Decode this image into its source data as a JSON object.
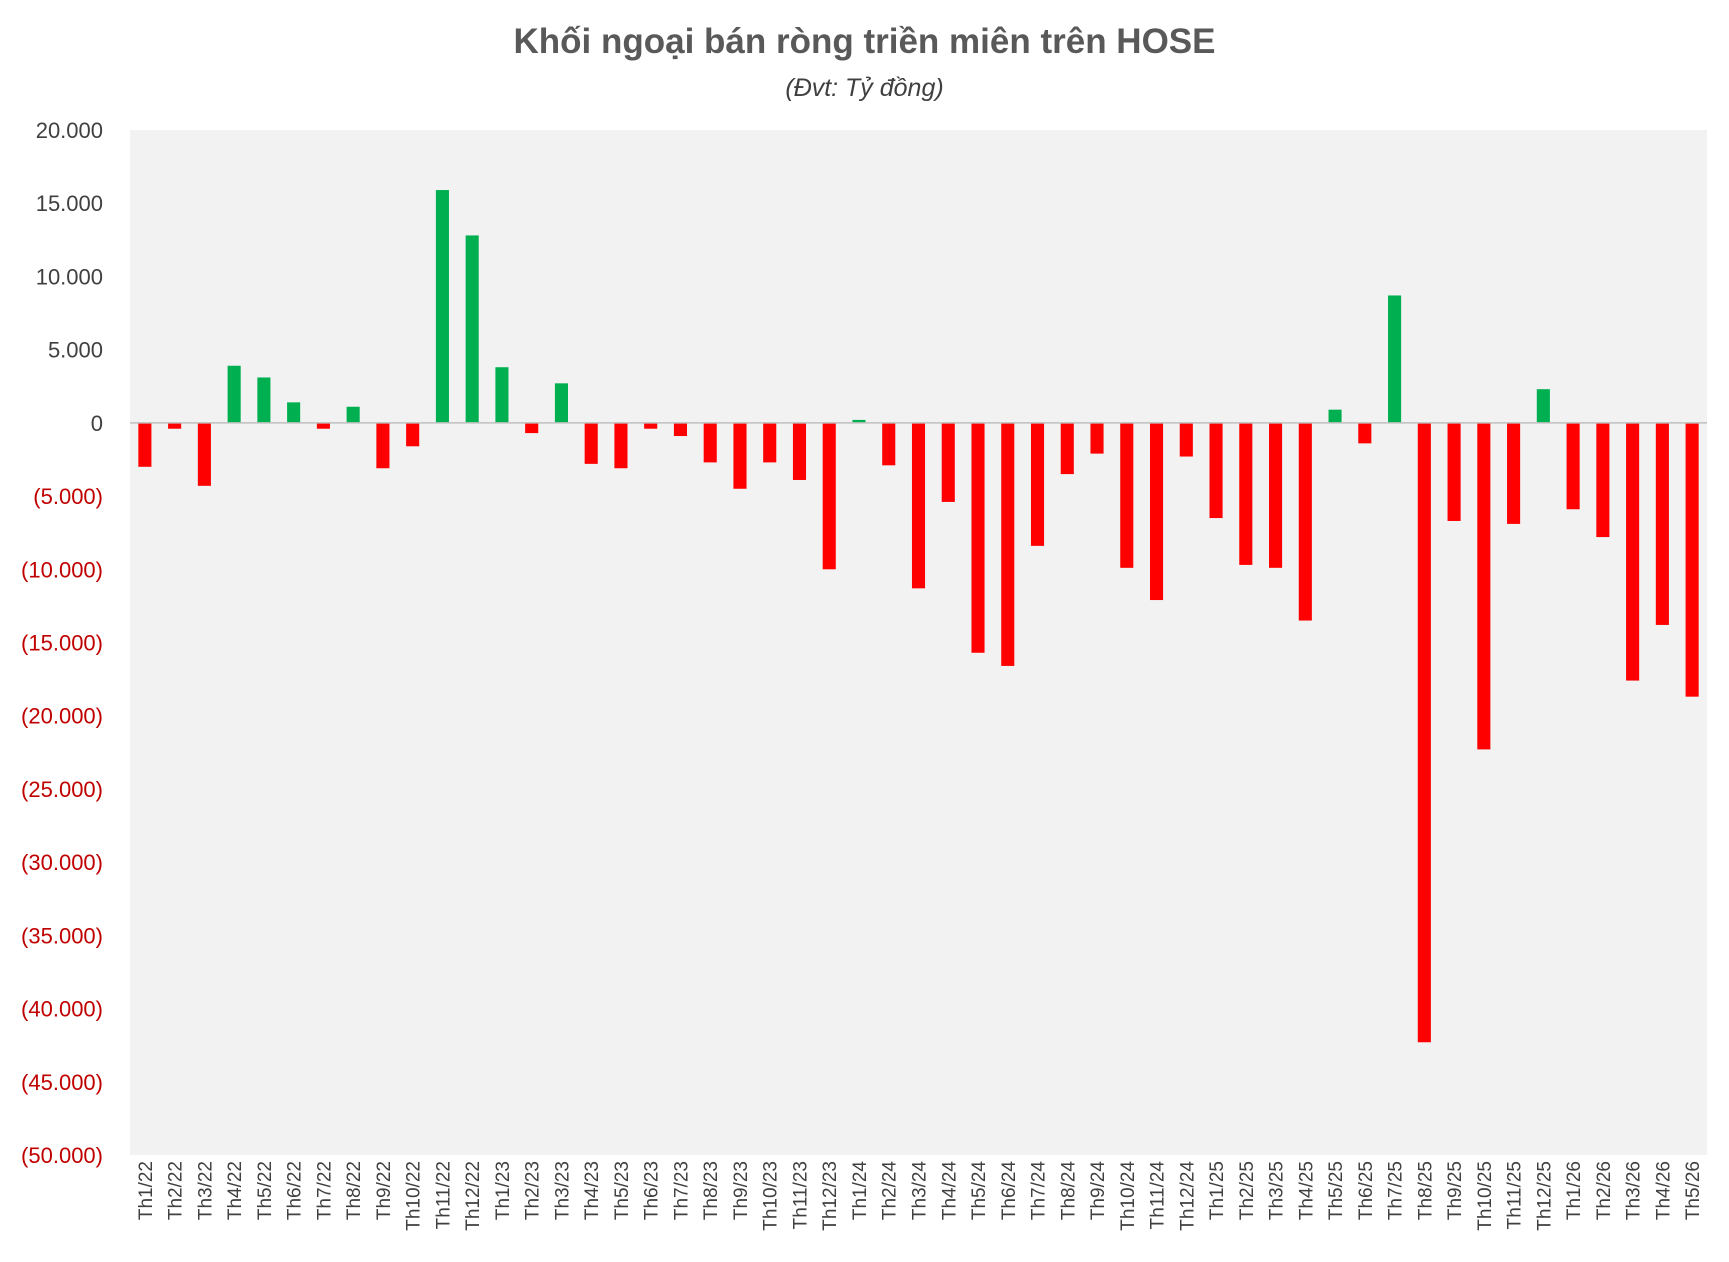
{
  "chart_data": {
    "type": "bar",
    "title": "Khối ngoại bán ròng triền miên trên HOSE",
    "subtitle": "(Đvt: Tỷ đồng)",
    "xlabel": "",
    "ylabel": "",
    "ylim": [
      -50000,
      20000
    ],
    "ytick_values": [
      20000,
      15000,
      10000,
      5000,
      0,
      -5000,
      -10000,
      -15000,
      -20000,
      -25000,
      -30000,
      -35000,
      -40000,
      -45000,
      -50000
    ],
    "ytick_labels": [
      "20.000",
      "15.000",
      "10.000",
      "5.000",
      "0",
      "(5.000)",
      "(10.000)",
      "(15.000)",
      "(20.000)",
      "(25.000)",
      "(30.000)",
      "(35.000)",
      "(40.000)",
      "(45.000)",
      "(50.000)"
    ],
    "grid": false,
    "legend": "none",
    "colors": {
      "positive": "#00b050",
      "negative": "#ff0000",
      "plot_background": "#f2f2f2",
      "positive_tick_label": "#404040",
      "negative_tick_label": "#c00000",
      "zero_line": "#bfbfbf"
    },
    "categories": [
      "Th1/22",
      "Th2/22",
      "Th3/22",
      "Th4/22",
      "Th5/22",
      "Th6/22",
      "Th7/22",
      "Th8/22",
      "Th9/22",
      "Th10/22",
      "Th11/22",
      "Th12/22",
      "Th1/23",
      "Th2/23",
      "Th3/23",
      "Th4/23",
      "Th5/23",
      "Th6/23",
      "Th7/23",
      "Th8/23",
      "Th9/23",
      "Th10/23",
      "Th11/23",
      "Th12/23",
      "Th1/24",
      "Th2/24",
      "Th3/24",
      "Th4/24",
      "Th5/24",
      "Th6/24",
      "Th7/24",
      "Th8/24",
      "Th9/24",
      "Th10/24",
      "Th11/24",
      "Th12/24",
      "Th1/25",
      "Th2/25",
      "Th3/25",
      "Th4/25",
      "Th5/25",
      "Th6/25",
      "Th7/25",
      "Th8/25",
      "Th9/25",
      "Th10/25",
      "Th11/25",
      "Th12/25",
      "Th1/26",
      "Th2/26",
      "Th3/26",
      "Th4/26",
      "Th5/26"
    ],
    "values": [
      -3000,
      -400,
      -4300,
      3900,
      3100,
      1400,
      -400,
      1100,
      -3100,
      -1600,
      15900,
      12800,
      3800,
      -700,
      2700,
      -2800,
      -3100,
      -400,
      -900,
      -2700,
      -4500,
      -2700,
      -3900,
      -10000,
      200,
      -2900,
      -11300,
      -5400,
      -15700,
      -16600,
      -8400,
      -3500,
      -2100,
      -9900,
      -12100,
      -2300,
      -6500,
      -9700,
      -9900,
      -13500,
      900,
      -1400,
      8700,
      -42300,
      -6700,
      -22300,
      -6900,
      2300,
      -5900,
      -7800,
      -17600,
      -13800,
      -18700
    ]
  }
}
